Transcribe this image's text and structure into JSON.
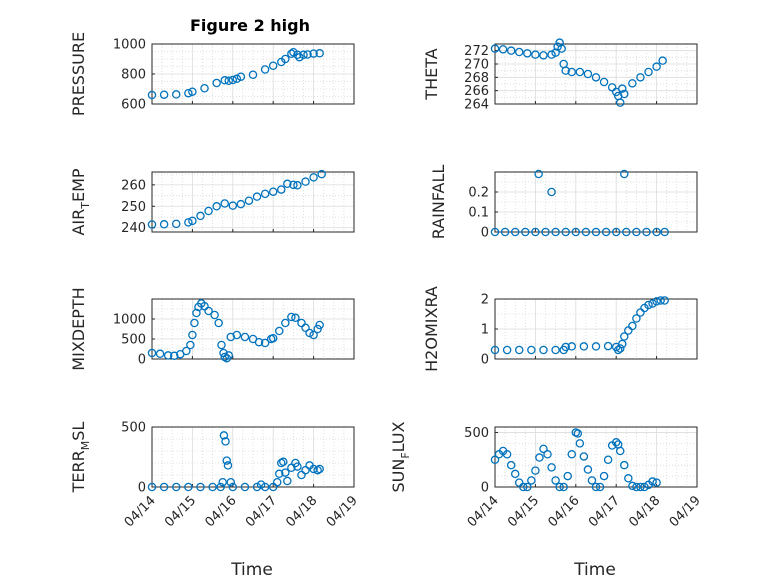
{
  "figure": {
    "title": "Figure 2 high",
    "xlabel": "Time",
    "marker_color": "#0072BD",
    "grid_color": "#d7d7d7",
    "axis_color": "#262626"
  },
  "chart_data": [
    {
      "type": "scatter",
      "ylabel": {
        "main": "PRESSURE",
        "sub": "",
        "rest": ""
      },
      "ylim": [
        600,
        1000
      ],
      "yticks": [
        600,
        800,
        1000
      ],
      "ytick_labels": [
        "600",
        "800",
        "1000"
      ],
      "xlim": [
        "04/14",
        "04/19"
      ],
      "xtick_labels": [],
      "minor_y": 4,
      "points": [
        [
          0.0,
          660
        ],
        [
          0.3,
          662
        ],
        [
          0.6,
          664
        ],
        [
          0.9,
          672
        ],
        [
          1.0,
          682
        ],
        [
          1.3,
          705
        ],
        [
          1.6,
          740
        ],
        [
          1.8,
          758
        ],
        [
          1.9,
          755
        ],
        [
          2.0,
          760
        ],
        [
          2.1,
          768
        ],
        [
          2.2,
          782
        ],
        [
          2.5,
          795
        ],
        [
          2.8,
          830
        ],
        [
          3.0,
          855
        ],
        [
          3.2,
          880
        ],
        [
          3.3,
          900
        ],
        [
          3.45,
          935
        ],
        [
          3.5,
          945
        ],
        [
          3.6,
          928
        ],
        [
          3.65,
          912
        ],
        [
          3.75,
          928
        ],
        [
          3.85,
          930
        ],
        [
          4.0,
          936
        ],
        [
          4.15,
          938
        ]
      ]
    },
    {
      "type": "scatter",
      "ylabel": {
        "main": "THETA",
        "sub": "",
        "rest": ""
      },
      "ylim": [
        264,
        273
      ],
      "yticks": [
        264,
        266,
        268,
        270,
        272
      ],
      "ytick_labels": [
        "264",
        "266",
        "268",
        "270",
        "272"
      ],
      "xlim": [
        "04/14",
        "04/19"
      ],
      "xtick_labels": [],
      "minor_y": 2,
      "points": [
        [
          0.0,
          272.3
        ],
        [
          0.2,
          272.2
        ],
        [
          0.4,
          272.0
        ],
        [
          0.6,
          271.8
        ],
        [
          0.8,
          271.6
        ],
        [
          1.0,
          271.4
        ],
        [
          1.2,
          271.3
        ],
        [
          1.4,
          271.4
        ],
        [
          1.5,
          271.7
        ],
        [
          1.55,
          272.6
        ],
        [
          1.6,
          273.2
        ],
        [
          1.65,
          272.3
        ],
        [
          1.7,
          270.0
        ],
        [
          1.75,
          269.0
        ],
        [
          1.9,
          268.8
        ],
        [
          2.1,
          268.8
        ],
        [
          2.3,
          268.5
        ],
        [
          2.5,
          268.0
        ],
        [
          2.7,
          267.3
        ],
        [
          2.9,
          266.5
        ],
        [
          3.0,
          265.8
        ],
        [
          3.05,
          265.2
        ],
        [
          3.1,
          264.2
        ],
        [
          3.15,
          266.3
        ],
        [
          3.2,
          265.5
        ],
        [
          3.4,
          267.1
        ],
        [
          3.6,
          268.0
        ],
        [
          3.8,
          268.8
        ],
        [
          4.0,
          269.6
        ],
        [
          4.15,
          270.5
        ]
      ]
    },
    {
      "type": "scatter",
      "ylabel": {
        "main": "AIR",
        "sub": "T",
        "rest": "EMP"
      },
      "ylim": [
        238,
        266
      ],
      "yticks": [
        240,
        250,
        260
      ],
      "ytick_labels": [
        "240",
        "250",
        "260"
      ],
      "xlim": [
        "04/14",
        "04/19"
      ],
      "xtick_labels": [],
      "minor_y": 2,
      "points": [
        [
          0.0,
          241.5
        ],
        [
          0.3,
          241.6
        ],
        [
          0.6,
          241.8
        ],
        [
          0.9,
          242.5
        ],
        [
          1.0,
          243.2
        ],
        [
          1.2,
          245.5
        ],
        [
          1.4,
          247.8
        ],
        [
          1.6,
          250.0
        ],
        [
          1.8,
          251.3
        ],
        [
          2.0,
          250.3
        ],
        [
          2.2,
          251.0
        ],
        [
          2.4,
          252.6
        ],
        [
          2.6,
          254.5
        ],
        [
          2.8,
          255.8
        ],
        [
          3.0,
          256.8
        ],
        [
          3.2,
          257.8
        ],
        [
          3.35,
          260.5
        ],
        [
          3.5,
          260.0
        ],
        [
          3.6,
          259.8
        ],
        [
          3.8,
          261.5
        ],
        [
          4.0,
          263.5
        ],
        [
          4.2,
          265.0
        ]
      ]
    },
    {
      "type": "scatter",
      "ylabel": {
        "main": "RAINFALL",
        "sub": "",
        "rest": ""
      },
      "ylim": [
        0,
        0.3
      ],
      "yticks": [
        0,
        0.1,
        0.2
      ],
      "ytick_labels": [
        "0",
        "0.1",
        "0.2"
      ],
      "xlim": [
        "04/14",
        "04/19"
      ],
      "xtick_labels": [],
      "minor_y": 2,
      "points": [
        [
          0.0,
          0
        ],
        [
          0.25,
          0
        ],
        [
          0.5,
          0
        ],
        [
          0.75,
          0
        ],
        [
          1.0,
          0
        ],
        [
          1.25,
          0
        ],
        [
          1.5,
          0
        ],
        [
          1.75,
          0
        ],
        [
          2.0,
          0
        ],
        [
          2.25,
          0
        ],
        [
          2.5,
          0
        ],
        [
          2.75,
          0
        ],
        [
          3.0,
          0
        ],
        [
          3.25,
          0
        ],
        [
          3.5,
          0
        ],
        [
          3.75,
          0
        ],
        [
          4.0,
          0
        ],
        [
          4.2,
          0
        ],
        [
          1.08,
          0.29
        ],
        [
          1.4,
          0.2
        ],
        [
          3.2,
          0.29
        ]
      ]
    },
    {
      "type": "scatter",
      "ylabel": {
        "main": "MIXDEPTH",
        "sub": "",
        "rest": ""
      },
      "ylim": [
        0,
        1500
      ],
      "yticks": [
        0,
        500,
        1000
      ],
      "ytick_labels": [
        "0",
        "500",
        "1000"
      ],
      "xlim": [
        "04/14",
        "04/19"
      ],
      "xtick_labels": [],
      "minor_y": 2,
      "points": [
        [
          0.0,
          150
        ],
        [
          0.2,
          130
        ],
        [
          0.4,
          90
        ],
        [
          0.55,
          80
        ],
        [
          0.7,
          120
        ],
        [
          0.85,
          200
        ],
        [
          0.95,
          350
        ],
        [
          1.0,
          600
        ],
        [
          1.05,
          900
        ],
        [
          1.1,
          1150
        ],
        [
          1.15,
          1300
        ],
        [
          1.22,
          1390
        ],
        [
          1.3,
          1320
        ],
        [
          1.4,
          1200
        ],
        [
          1.55,
          1100
        ],
        [
          1.65,
          900
        ],
        [
          1.72,
          350
        ],
        [
          1.77,
          150
        ],
        [
          1.8,
          50
        ],
        [
          1.85,
          20
        ],
        [
          1.9,
          90
        ],
        [
          1.95,
          550
        ],
        [
          2.1,
          600
        ],
        [
          2.3,
          550
        ],
        [
          2.5,
          500
        ],
        [
          2.65,
          420
        ],
        [
          2.8,
          400
        ],
        [
          2.95,
          500
        ],
        [
          3.0,
          520
        ],
        [
          3.15,
          700
        ],
        [
          3.3,
          900
        ],
        [
          3.45,
          1050
        ],
        [
          3.55,
          1030
        ],
        [
          3.7,
          900
        ],
        [
          3.8,
          780
        ],
        [
          3.9,
          650
        ],
        [
          4.0,
          600
        ],
        [
          4.1,
          750
        ],
        [
          4.15,
          850
        ]
      ]
    },
    {
      "type": "scatter",
      "ylabel": {
        "main": "H2OMIXRA",
        "sub": "",
        "rest": ""
      },
      "ylim": [
        0,
        2
      ],
      "yticks": [
        0,
        1,
        2
      ],
      "ytick_labels": [
        "0",
        "1",
        "2"
      ],
      "xlim": [
        "04/14",
        "04/19"
      ],
      "xtick_labels": [],
      "minor_y": 2,
      "points": [
        [
          0.0,
          0.3
        ],
        [
          0.3,
          0.3
        ],
        [
          0.6,
          0.3
        ],
        [
          0.9,
          0.3
        ],
        [
          1.2,
          0.3
        ],
        [
          1.5,
          0.3
        ],
        [
          1.7,
          0.3
        ],
        [
          1.75,
          0.4
        ],
        [
          1.9,
          0.42
        ],
        [
          2.2,
          0.42
        ],
        [
          2.5,
          0.42
        ],
        [
          2.8,
          0.43
        ],
        [
          3.0,
          0.4
        ],
        [
          3.05,
          0.3
        ],
        [
          3.1,
          0.35
        ],
        [
          3.15,
          0.5
        ],
        [
          3.2,
          0.75
        ],
        [
          3.3,
          0.95
        ],
        [
          3.4,
          1.1
        ],
        [
          3.5,
          1.35
        ],
        [
          3.6,
          1.55
        ],
        [
          3.7,
          1.7
        ],
        [
          3.8,
          1.8
        ],
        [
          3.9,
          1.85
        ],
        [
          4.0,
          1.92
        ],
        [
          4.1,
          1.95
        ],
        [
          4.2,
          1.95
        ]
      ]
    },
    {
      "type": "scatter",
      "ylabel": {
        "main": "TERR",
        "sub": "M",
        "rest": "SL"
      },
      "ylim": [
        0,
        500
      ],
      "yticks": [
        0,
        500
      ],
      "ytick_labels": [
        "0",
        "500"
      ],
      "xlim": [
        "04/14",
        "04/19"
      ],
      "xtick_labels": [
        "04/14",
        "04/15",
        "04/16",
        "04/17",
        "04/18",
        "04/19"
      ],
      "minor_y": 5,
      "points": [
        [
          0.0,
          0
        ],
        [
          0.3,
          0
        ],
        [
          0.6,
          0
        ],
        [
          0.9,
          0
        ],
        [
          1.2,
          0
        ],
        [
          1.5,
          0
        ],
        [
          1.7,
          0
        ],
        [
          1.75,
          40
        ],
        [
          1.78,
          430
        ],
        [
          1.82,
          380
        ],
        [
          1.85,
          220
        ],
        [
          1.88,
          180
        ],
        [
          1.95,
          40
        ],
        [
          2.0,
          0
        ],
        [
          2.3,
          0
        ],
        [
          2.6,
          0
        ],
        [
          2.7,
          20
        ],
        [
          2.8,
          0
        ],
        [
          3.0,
          0
        ],
        [
          3.1,
          40
        ],
        [
          3.15,
          110
        ],
        [
          3.2,
          200
        ],
        [
          3.25,
          210
        ],
        [
          3.3,
          120
        ],
        [
          3.35,
          50
        ],
        [
          3.45,
          160
        ],
        [
          3.55,
          200
        ],
        [
          3.6,
          170
        ],
        [
          3.7,
          100
        ],
        [
          3.8,
          140
        ],
        [
          3.9,
          180
        ],
        [
          4.0,
          150
        ],
        [
          4.1,
          140
        ],
        [
          4.15,
          150
        ]
      ]
    },
    {
      "type": "scatter",
      "ylabel": {
        "main": "SUN",
        "sub": "F",
        "rest": "LUX"
      },
      "ylim": [
        0,
        550
      ],
      "yticks": [
        0,
        500
      ],
      "ytick_labels": [
        "0",
        "500"
      ],
      "xlim": [
        "04/14",
        "04/19"
      ],
      "xtick_labels": [
        "04/14",
        "04/15",
        "04/16",
        "04/17",
        "04/18",
        "04/19"
      ],
      "minor_y": 5,
      "points": [
        [
          0.0,
          250
        ],
        [
          0.1,
          300
        ],
        [
          0.2,
          330
        ],
        [
          0.3,
          300
        ],
        [
          0.4,
          200
        ],
        [
          0.5,
          120
        ],
        [
          0.6,
          40
        ],
        [
          0.7,
          0
        ],
        [
          0.8,
          0
        ],
        [
          0.9,
          60
        ],
        [
          1.0,
          150
        ],
        [
          1.1,
          270
        ],
        [
          1.2,
          350
        ],
        [
          1.3,
          300
        ],
        [
          1.4,
          180
        ],
        [
          1.5,
          60
        ],
        [
          1.6,
          0
        ],
        [
          1.7,
          0
        ],
        [
          1.8,
          100
        ],
        [
          1.9,
          300
        ],
        [
          2.0,
          500
        ],
        [
          2.05,
          490
        ],
        [
          2.1,
          400
        ],
        [
          2.2,
          280
        ],
        [
          2.3,
          160
        ],
        [
          2.4,
          60
        ],
        [
          2.5,
          0
        ],
        [
          2.6,
          0
        ],
        [
          2.7,
          100
        ],
        [
          2.8,
          250
        ],
        [
          2.9,
          380
        ],
        [
          3.0,
          410
        ],
        [
          3.05,
          390
        ],
        [
          3.1,
          330
        ],
        [
          3.2,
          200
        ],
        [
          3.3,
          80
        ],
        [
          3.4,
          10
        ],
        [
          3.5,
          0
        ],
        [
          3.6,
          0
        ],
        [
          3.7,
          0
        ],
        [
          3.8,
          20
        ],
        [
          3.9,
          50
        ],
        [
          4.0,
          40
        ]
      ]
    }
  ]
}
